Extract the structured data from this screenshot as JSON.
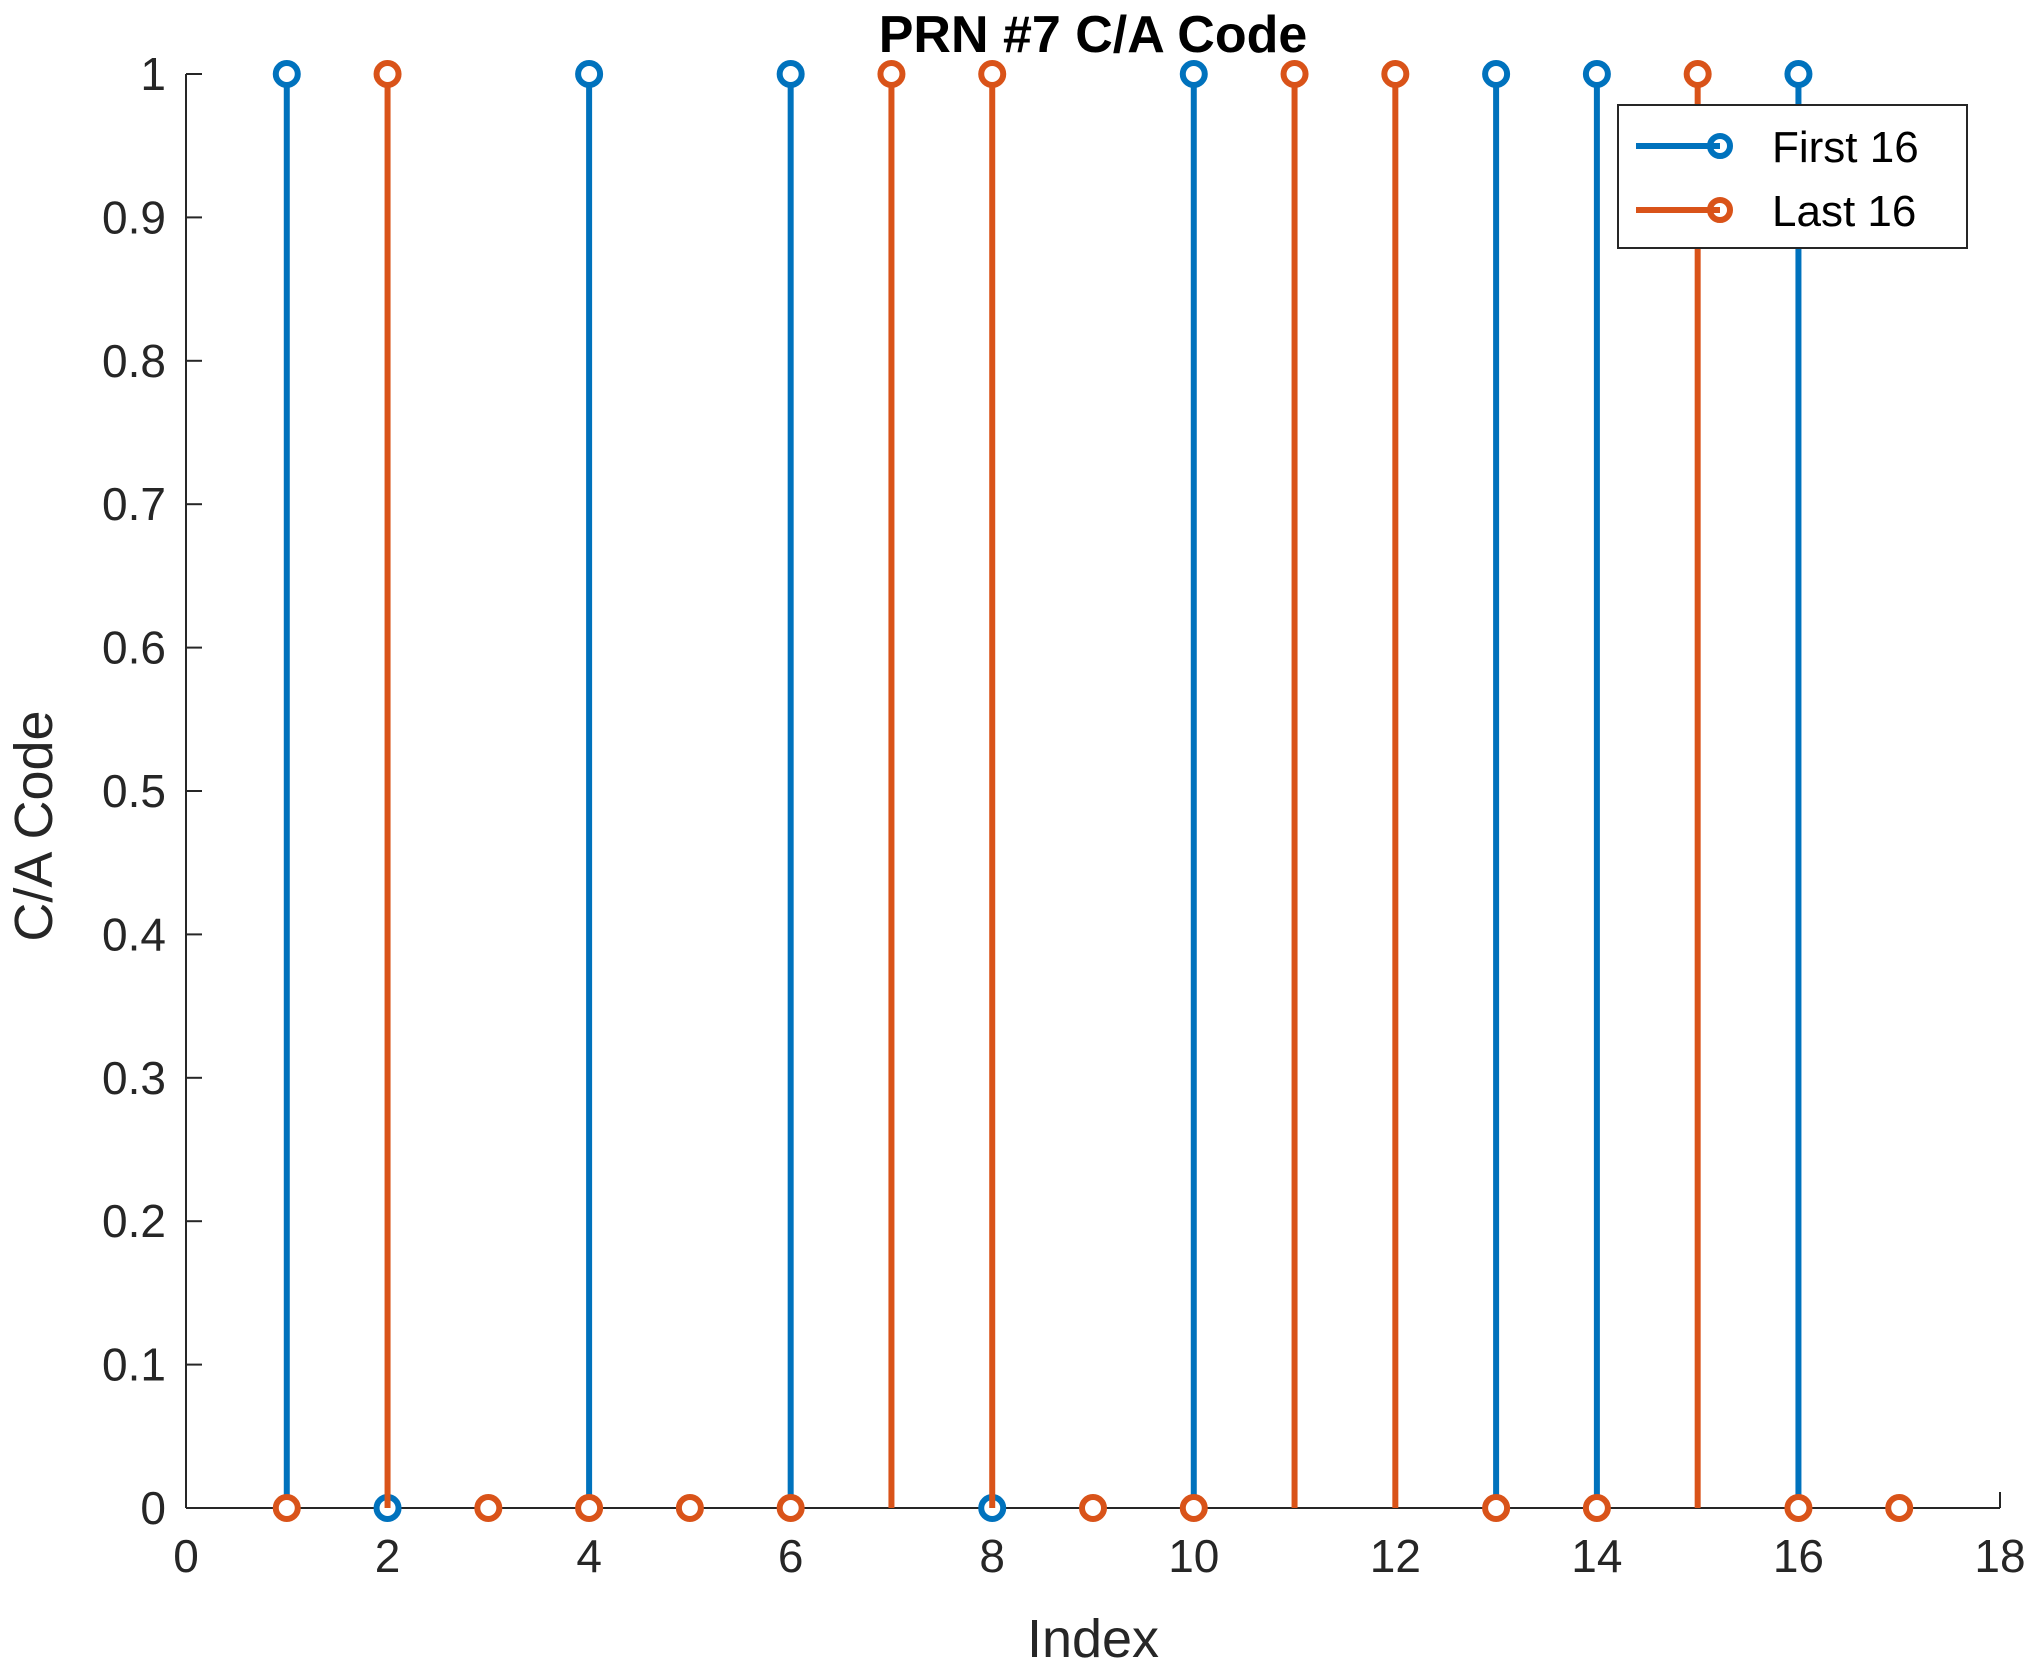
{
  "chart_data": {
    "type": "stem",
    "title": "PRN #7 C/A Code",
    "xlabel": "Index",
    "ylabel": "C/A Code",
    "xlim": [
      0,
      18
    ],
    "ylim": [
      0,
      1
    ],
    "x_ticks": [
      "0",
      "2",
      "4",
      "6",
      "8",
      "10",
      "12",
      "14",
      "16",
      "18"
    ],
    "y_ticks": [
      "0",
      "0.1",
      "0.2",
      "0.3",
      "0.4",
      "0.5",
      "0.6",
      "0.7",
      "0.8",
      "0.9",
      "1"
    ],
    "x_tick_values": [
      0,
      2,
      4,
      6,
      8,
      10,
      12,
      14,
      16,
      18
    ],
    "y_tick_values": [
      0,
      0.1,
      0.2,
      0.3,
      0.4,
      0.5,
      0.6,
      0.7,
      0.8,
      0.9,
      1
    ],
    "grid": false,
    "legend_position": "top-right",
    "x": [
      1,
      2,
      3,
      4,
      5,
      6,
      7,
      8,
      9,
      10,
      11,
      12,
      13,
      14,
      15,
      16,
      17
    ],
    "series": [
      {
        "name": "First 16",
        "color": "#0072BD",
        "x": [
          1,
          2,
          4,
          6,
          8,
          10,
          13,
          14,
          16
        ],
        "values": [
          1,
          0,
          1,
          1,
          0,
          1,
          1,
          1,
          1
        ]
      },
      {
        "name": "Last 16",
        "color": "#D95319",
        "x": [
          1,
          2,
          3,
          4,
          5,
          6,
          7,
          8,
          9,
          10,
          11,
          12,
          13,
          14,
          15,
          16,
          17
        ],
        "values": [
          0,
          1,
          0,
          0,
          0,
          0,
          1,
          1,
          0,
          0,
          1,
          1,
          0,
          0,
          1,
          0,
          0
        ]
      }
    ]
  }
}
